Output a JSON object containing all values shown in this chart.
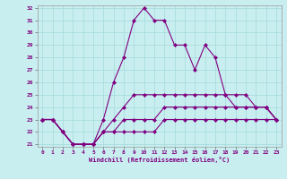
{
  "xlabel": "Windchill (Refroidissement éolien,°C)",
  "background_color": "#c8eef0",
  "grid_color": "#aadddd",
  "line_color": "#800080",
  "x": [
    0,
    1,
    2,
    3,
    4,
    5,
    6,
    7,
    8,
    9,
    10,
    11,
    12,
    13,
    14,
    15,
    16,
    17,
    18,
    19,
    20,
    21,
    22,
    23
  ],
  "line1": [
    23,
    23,
    22,
    21,
    21,
    21,
    23,
    26,
    28,
    31,
    32,
    31,
    31,
    29,
    29,
    27,
    29,
    28,
    25,
    24,
    24,
    24,
    24,
    23
  ],
  "line2": [
    23,
    23,
    22,
    21,
    21,
    21,
    22,
    23,
    24,
    25,
    25,
    25,
    25,
    25,
    25,
    25,
    25,
    25,
    25,
    25,
    25,
    24,
    24,
    23
  ],
  "line3": [
    23,
    23,
    22,
    21,
    21,
    21,
    22,
    22,
    23,
    23,
    23,
    23,
    24,
    24,
    24,
    24,
    24,
    24,
    24,
    24,
    24,
    24,
    24,
    23
  ],
  "line4": [
    23,
    23,
    22,
    21,
    21,
    21,
    22,
    22,
    22,
    22,
    22,
    22,
    23,
    23,
    23,
    23,
    23,
    23,
    23,
    23,
    23,
    23,
    23,
    23
  ],
  "ylim": [
    21,
    32
  ],
  "xlim": [
    0,
    23
  ],
  "yticks": [
    21,
    22,
    23,
    24,
    25,
    26,
    27,
    28,
    29,
    30,
    31,
    32
  ],
  "xticks": [
    0,
    1,
    2,
    3,
    4,
    5,
    6,
    7,
    8,
    9,
    10,
    11,
    12,
    13,
    14,
    15,
    16,
    17,
    18,
    19,
    20,
    21,
    22,
    23
  ],
  "marker": "D",
  "markersize": 2.0,
  "linewidth": 0.8,
  "tick_fontsize": 4.5,
  "xlabel_fontsize": 5.0
}
